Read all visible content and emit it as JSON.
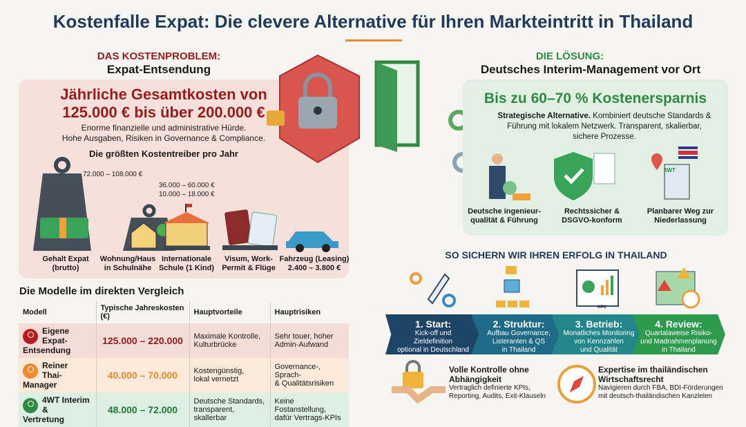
{
  "title": "Kostenfalle Expat: Die clevere Alternative für Ihren Markteintritt in Thailand",
  "colors": {
    "navy": "#1f3a5a",
    "red": "#9a1b1b",
    "green": "#2e8a43",
    "orange": "#e88b3a"
  },
  "problem": {
    "kicker": "DAS KOSTENPROBLEM:",
    "subtitle": "Expat-Entsendung",
    "headline1": "Jährliche Gesamtkosten von",
    "headline2": "125.000 € bis über 200.000 €",
    "desc1": "Enorme finanzielle und administrative Hürde.",
    "desc2": "Hohe Ausgaben, Risiken in Governance & Compliance.",
    "drivers_title": "Die größten Kostentreiber pro Jahr",
    "drivers": [
      {
        "label1": "Gehalt Expat",
        "label2": "(brutto)",
        "value": "72.000 – 108.000 €",
        "icon": "money-weight-icon"
      },
      {
        "label1": "Wohnung/Haus",
        "label2": "in Schulnähe",
        "value": "36.000 – 60.000 €",
        "icon": "house-weight-icon"
      },
      {
        "label1": "Internationale",
        "label2": "Schule (1 Kind)",
        "value": "10.000 – 18.000 €",
        "icon": "school-icon"
      },
      {
        "label1": "Visum, Work-",
        "label2": "Permit & Flüge",
        "icon": "passport-icon"
      },
      {
        "label1": "Fahrzeug (Leasing)",
        "label2": "2.400 – 3.800 €",
        "icon": "car-icon"
      }
    ]
  },
  "comparison": {
    "title": "Die Modelle im direkten Vergleich",
    "headers": [
      "Modell",
      "Typische Jahreskosten (€)",
      "Hauptvorteile",
      "Hauptrisiken"
    ],
    "rows": [
      {
        "model1": "Eigene Expat-",
        "model2": "Entsendung",
        "cost": "125.000 – 220.000",
        "pro1": "Maximale Kontrolle,",
        "pro2": "Kulturbrücke",
        "risk1": "Sehr touer, hoher",
        "risk2": "Admin-Aufwand",
        "color": "#b71c1c"
      },
      {
        "model1": "Reiner",
        "model2": "Thai-Manager",
        "cost": "40.000 – 70.000",
        "pro1": "Kostengünstig,",
        "pro2": "lokal vernetzt",
        "risk1": "Governance-, Sprach-",
        "risk2": "& Qualitätsrisiken",
        "color": "#ef8a2e"
      },
      {
        "model1": "4WT Interim",
        "model2": "& Vertretung",
        "cost": "48.000 – 72.000",
        "pro1": "Deutsche Standards,",
        "pro2": "transparent, skallerbar",
        "risk1": "Keine Fostanstellung,",
        "risk2": "dafür Vertrags-KPIs",
        "color": "#2e8a43"
      }
    ]
  },
  "solution": {
    "kicker": "DIE LÖSUNG:",
    "subtitle": "Deutsches Interim-Management vor Ort",
    "headline": "Bis zu 60–70 % Kostenersparnis",
    "desc_bold": "Strategische Alternative.",
    "desc": " Kombiniert deutsche Standards & Führung mit lokalem Netzwerk. Transparent, skalierbar, sichere Prozesse.",
    "features": [
      {
        "label1": "Deutsche ingenieur-",
        "label2": "qualität & Führung",
        "icon": "manager-icon"
      },
      {
        "label1": "Rechtssicher &",
        "label2": "DSGVO-konform",
        "icon": "shield-check-icon"
      },
      {
        "label1": "Planbarer Weg zur",
        "label2": "Niederlassung",
        "icon": "building-flag-icon",
        "badge": "4WT"
      }
    ]
  },
  "process": {
    "title": "SO SICHERN WIR IHREN ERFOLG IN THAILAND",
    "steps": [
      {
        "title": "1. Start:",
        "l1": "Kick-off und",
        "l2": "Zieldefinition",
        "l3": "optional in Deutschland",
        "color": "#1e4468",
        "icon": "rocket-icon"
      },
      {
        "title": "2. Struktur:",
        "l1": "Aufbau Governance,",
        "l2": "Listeranten & QS",
        "l3": "in Thailand",
        "color": "#1f6a86",
        "icon": "structure-icon"
      },
      {
        "title": "3. Betrieb:",
        "l1": "Monatliches Monitoring",
        "l2": "von Kennzahlen",
        "l3": "und Qualität",
        "color": "#22868a",
        "icon": "dashboard-icon",
        "badge": "KPK"
      },
      {
        "title": "4. Review:",
        "l1": "Quartalaweise Risiko-",
        "l2": "und Madnahmenplanung",
        "l3": "in Thailand",
        "color": "#2e9a4e",
        "icon": "map-warning-icon"
      }
    ],
    "benefits": [
      {
        "title1": "Volle Kontrolle ohne",
        "title2": "Abhängigkeit",
        "d1": "Vertraglich definierte KPIs,",
        "d2": "Reporting, Audits, Exit-Klauseln",
        "icon": "lock-handshake-icon"
      },
      {
        "title1": "Expertise im thailändischen",
        "title2": "Wirtschaftsrecht",
        "d1": "Navigieren durch FBA, BDI-Förderungen",
        "d2": "mit deutsch-thailändischen Kanzlelen",
        "icon": "compass-icon"
      }
    ]
  }
}
